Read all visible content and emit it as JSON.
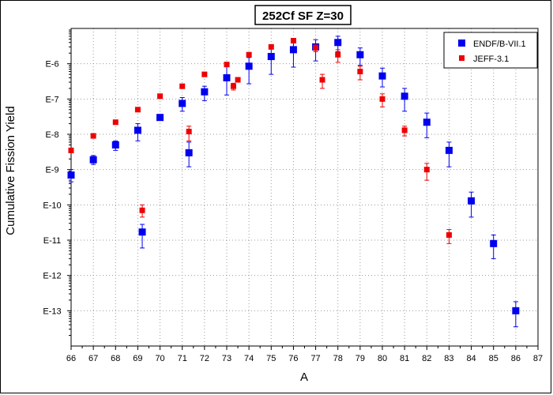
{
  "chart_data": {
    "type": "scatter",
    "title": "252Cf SF Z=30",
    "xlabel": "A",
    "ylabel": "Cumulative Fission Yield",
    "xlim": [
      66,
      87
    ],
    "ylim": [
      1e-14,
      1e-05
    ],
    "y_scale": "log",
    "x_ticks": [
      66,
      67,
      68,
      69,
      70,
      71,
      72,
      73,
      74,
      75,
      76,
      77,
      78,
      79,
      80,
      81,
      82,
      83,
      84,
      85,
      86,
      87
    ],
    "y_ticks": [
      {
        "value": 1e-06,
        "label": "E-6"
      },
      {
        "value": 1e-07,
        "label": "E-7"
      },
      {
        "value": 1e-08,
        "label": "E-8"
      },
      {
        "value": 1e-09,
        "label": "E-9"
      },
      {
        "value": 1e-10,
        "label": "E-10"
      },
      {
        "value": 1e-11,
        "label": "E-11"
      },
      {
        "value": 1e-12,
        "label": "E-12"
      },
      {
        "value": 1e-13,
        "label": "E-13"
      }
    ],
    "grid": true,
    "legend_position": "top-right",
    "series": [
      {
        "name": "ENDF/B-VII.1",
        "color": "#0000ee",
        "points": [
          {
            "x": 66,
            "y": 7e-10,
            "lo": 4.5e-10,
            "hi": 1e-09
          },
          {
            "x": 67,
            "y": 1.9e-09,
            "lo": 1.4e-09,
            "hi": 2.5e-09
          },
          {
            "x": 68,
            "y": 5e-09,
            "lo": 3.5e-09,
            "hi": 6.5e-09
          },
          {
            "x": 69,
            "y": 1.3e-08,
            "lo": 6.5e-09,
            "hi": 2e-08
          },
          {
            "x": 69.2,
            "y": 1.7e-11,
            "lo": 6e-12,
            "hi": 2.8e-11
          },
          {
            "x": 70,
            "y": 3e-08,
            "lo": 2.5e-08,
            "hi": 3.5e-08
          },
          {
            "x": 71,
            "y": 7.5e-08,
            "lo": 4.5e-08,
            "hi": 1.1e-07
          },
          {
            "x": 71.3,
            "y": 3e-09,
            "lo": 1.2e-09,
            "hi": 6e-09
          },
          {
            "x": 72,
            "y": 1.6e-07,
            "lo": 9e-08,
            "hi": 2.3e-07
          },
          {
            "x": 73,
            "y": 4e-07,
            "lo": 1.3e-07,
            "hi": 8.5e-07
          },
          {
            "x": 74,
            "y": 8.5e-07,
            "lo": 2.7e-07,
            "hi": 1.5e-06
          },
          {
            "x": 75,
            "y": 1.6e-06,
            "lo": 5e-07,
            "hi": 2.8e-06
          },
          {
            "x": 76,
            "y": 2.5e-06,
            "lo": 8e-07,
            "hi": 4.3e-06
          },
          {
            "x": 77,
            "y": 3e-06,
            "lo": 1.2e-06,
            "hi": 4.8e-06
          },
          {
            "x": 78,
            "y": 4e-06,
            "lo": 2.2e-06,
            "hi": 6e-06
          },
          {
            "x": 79,
            "y": 1.8e-06,
            "lo": 9e-07,
            "hi": 2.8e-06
          },
          {
            "x": 80,
            "y": 4.5e-07,
            "lo": 2.2e-07,
            "hi": 7.5e-07
          },
          {
            "x": 81,
            "y": 1.2e-07,
            "lo": 4.5e-08,
            "hi": 2e-07
          },
          {
            "x": 82,
            "y": 2.2e-08,
            "lo": 8e-09,
            "hi": 4e-08
          },
          {
            "x": 83,
            "y": 3.5e-09,
            "lo": 1.2e-09,
            "hi": 6e-09
          },
          {
            "x": 84,
            "y": 1.3e-10,
            "lo": 4.5e-11,
            "hi": 2.3e-10
          },
          {
            "x": 85,
            "y": 8e-12,
            "lo": 3e-12,
            "hi": 1.4e-11
          },
          {
            "x": 86,
            "y": 1e-13,
            "lo": 3.5e-14,
            "hi": 1.8e-13
          }
        ]
      },
      {
        "name": "JEFF-3.1",
        "color": "#ee0000",
        "points": [
          {
            "x": 66,
            "y": 3.5e-09,
            "lo": 3e-09,
            "hi": 4e-09
          },
          {
            "x": 67,
            "y": 9e-09,
            "lo": 8e-09,
            "hi": 1e-08
          },
          {
            "x": 68,
            "y": 2.2e-08,
            "lo": 2e-08,
            "hi": 2.4e-08
          },
          {
            "x": 69,
            "y": 5e-08,
            "lo": 4.5e-08,
            "hi": 5.5e-08
          },
          {
            "x": 69.2,
            "y": 7e-11,
            "lo": 4.5e-11,
            "hi": 1e-10
          },
          {
            "x": 70,
            "y": 1.2e-07,
            "lo": 1.1e-07,
            "hi": 1.3e-07
          },
          {
            "x": 71,
            "y": 2.3e-07,
            "lo": 2.1e-07,
            "hi": 2.5e-07
          },
          {
            "x": 71.3,
            "y": 1.2e-08,
            "lo": 6.5e-09,
            "hi": 1.7e-08
          },
          {
            "x": 72,
            "y": 5e-07,
            "lo": 4.5e-07,
            "hi": 5.5e-07
          },
          {
            "x": 73,
            "y": 9.5e-07,
            "lo": 8.5e-07,
            "hi": 1.05e-06
          },
          {
            "x": 73.3,
            "y": 2.3e-07,
            "lo": 1.8e-07,
            "hi": 2.8e-07
          },
          {
            "x": 73.5,
            "y": 3.5e-07,
            "lo": 3e-07,
            "hi": 4e-07
          },
          {
            "x": 74,
            "y": 1.8e-06,
            "lo": 1.6e-06,
            "hi": 2e-06
          },
          {
            "x": 75,
            "y": 3e-06,
            "lo": 2.7e-06,
            "hi": 3.3e-06
          },
          {
            "x": 76,
            "y": 4.5e-06,
            "lo": 4e-06,
            "hi": 5e-06
          },
          {
            "x": 77,
            "y": 2.8e-06,
            "lo": 2.2e-06,
            "hi": 3.4e-06
          },
          {
            "x": 77.3,
            "y": 3.5e-07,
            "lo": 2e-07,
            "hi": 5e-07
          },
          {
            "x": 78,
            "y": 1.8e-06,
            "lo": 1.1e-06,
            "hi": 2.5e-06
          },
          {
            "x": 79,
            "y": 6e-07,
            "lo": 3.5e-07,
            "hi": 8.5e-07
          },
          {
            "x": 80,
            "y": 1e-07,
            "lo": 6e-08,
            "hi": 1.4e-07
          },
          {
            "x": 81,
            "y": 1.3e-08,
            "lo": 9e-09,
            "hi": 1.7e-08
          },
          {
            "x": 82,
            "y": 1e-09,
            "lo": 5e-10,
            "hi": 1.5e-09
          },
          {
            "x": 83,
            "y": 1.4e-11,
            "lo": 8e-12,
            "hi": 2e-11
          }
        ]
      }
    ]
  }
}
